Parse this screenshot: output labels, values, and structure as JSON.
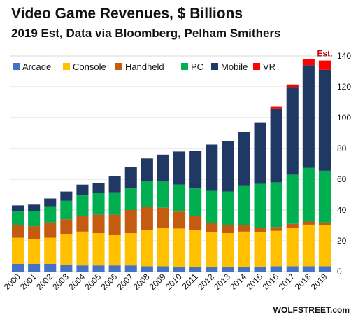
{
  "title": "Video Game Revenues, $ Billions",
  "subtitle": "2019 Est, Data via Bloomberg, Pelham Smithers",
  "credit": "WOLFSTREET.com",
  "annotation": "Est.",
  "colors": {
    "Arcade": "#4472c4",
    "Console": "#ffc000",
    "Handheld": "#c55a11",
    "PC": "#00b050",
    "Mobile": "#1f3864",
    "VR": "#ff0000",
    "grid": "#d9d9d9",
    "annotation": "#c00000"
  },
  "chart_data": {
    "type": "bar",
    "stacked": true,
    "title": "Video Game Revenues, $ Billions",
    "subtitle": "2019 Est, Data via Bloomberg, Pelham Smithers",
    "categories": [
      "2000",
      "2001",
      "2002",
      "2003",
      "2004",
      "2005",
      "2006",
      "2007",
      "2008",
      "2009",
      "2010",
      "2011",
      "2012",
      "2013",
      "2014",
      "2015",
      "2016",
      "2017",
      "2018",
      "2019"
    ],
    "ylim": [
      0,
      140
    ],
    "yticks": [
      0,
      20,
      40,
      60,
      80,
      100,
      120,
      140
    ],
    "y_axis_position": "right",
    "grid": true,
    "legend": "top-left",
    "series": [
      {
        "name": "Arcade",
        "values": [
          5,
          5,
          5,
          4.5,
          4,
          4,
          4,
          4,
          3.5,
          3.5,
          3,
          3,
          3,
          3,
          3,
          3,
          3.5,
          3.5,
          3.5,
          3.5
        ]
      },
      {
        "name": "Console",
        "values": [
          17,
          16,
          17,
          20,
          22,
          21,
          20,
          21,
          23.5,
          25,
          25,
          24,
          22.5,
          22,
          23,
          22.5,
          23,
          25,
          27,
          26.5
        ]
      },
      {
        "name": "Handheld",
        "values": [
          8,
          8.5,
          10,
          9.5,
          10,
          12,
          13,
          15,
          15,
          13,
          11,
          9,
          6,
          5,
          4,
          3,
          2.5,
          2.5,
          2,
          2
        ]
      },
      {
        "name": "PC",
        "values": [
          9,
          10,
          10.5,
          12,
          13.5,
          14,
          14.5,
          14,
          16.5,
          17,
          17.5,
          18,
          21,
          22,
          26,
          28.5,
          29,
          32,
          35,
          33.5
        ]
      },
      {
        "name": "Mobile",
        "values": [
          4,
          4,
          5,
          6,
          7,
          6.5,
          10.5,
          14,
          15,
          17.5,
          21.5,
          24.5,
          30,
          33,
          34.5,
          40,
          48,
          56.5,
          66.5,
          65.5
        ]
      },
      {
        "name": "VR",
        "values": [
          0,
          0,
          0,
          0,
          0,
          0,
          0,
          0,
          0,
          0,
          0,
          0,
          0,
          0,
          0,
          0,
          1,
          2,
          4,
          6
        ]
      }
    ]
  }
}
